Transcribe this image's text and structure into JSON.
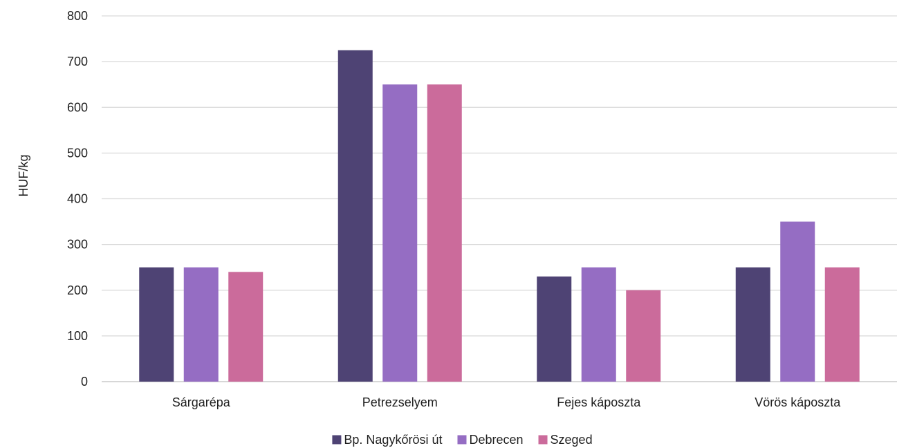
{
  "chart_data": {
    "type": "bar",
    "title": "",
    "xlabel": "",
    "ylabel": "HUF/kg",
    "ylim": [
      0,
      800
    ],
    "yticks": [
      0,
      100,
      200,
      300,
      400,
      500,
      600,
      700,
      800
    ],
    "grid": true,
    "legend_position": "bottom",
    "categories": [
      "Sárgarépa",
      "Petrezselyem",
      "Fejes káposzta",
      "Vörös káposzta"
    ],
    "series": [
      {
        "name": "Bp. Nagykőrösi út",
        "color": "#4e4374",
        "values": [
          250,
          725,
          230,
          250
        ]
      },
      {
        "name": "Debrecen",
        "color": "#956dc3",
        "values": [
          250,
          650,
          250,
          350
        ]
      },
      {
        "name": "Szeged",
        "color": "#cb6b9b",
        "values": [
          240,
          650,
          200,
          250
        ]
      }
    ]
  }
}
